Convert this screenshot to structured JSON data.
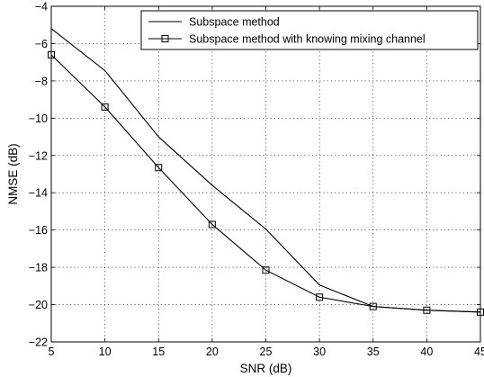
{
  "chart_data": {
    "type": "line",
    "title": "",
    "xlabel": "SNR (dB)",
    "ylabel": "NMSE (dB)",
    "xlim": [
      5,
      45
    ],
    "ylim": [
      -22,
      -4
    ],
    "xticks": [
      5,
      10,
      15,
      20,
      25,
      30,
      35,
      40,
      45
    ],
    "yticks": [
      -4,
      -6,
      -8,
      -10,
      -12,
      -14,
      -16,
      -18,
      -20,
      -22
    ],
    "grid": true,
    "legend_position": "top-right",
    "x": [
      5,
      10,
      15,
      20,
      25,
      30,
      35,
      40,
      45
    ],
    "series": [
      {
        "name": "Subspace method",
        "marker": "none",
        "values": [
          -5.2,
          -7.45,
          -11.0,
          -13.6,
          -15.95,
          -18.95,
          -20.1,
          -20.3,
          -20.4
        ]
      },
      {
        "name": "Subspace method with knowing mixing channel",
        "marker": "square",
        "values": [
          -6.6,
          -9.4,
          -12.65,
          -15.7,
          -18.15,
          -19.6,
          -20.1,
          -20.3,
          -20.4
        ]
      }
    ]
  }
}
